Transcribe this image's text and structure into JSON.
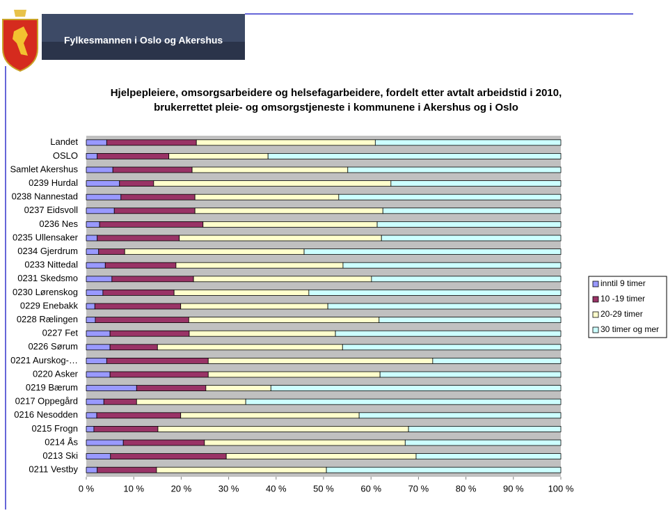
{
  "header": {
    "title": "Fylkesmannen i Oslo og Akershus"
  },
  "chart_data": {
    "type": "stacked-barh",
    "title": [
      "Hjelpepleiere, omsorgsarbeidere og helsefagarbeidere, fordelt etter avtalt arbeidstid i 2010,",
      "brukerrettet pleie- og omsorgstjeneste i kommunene i Akershus og i Oslo"
    ],
    "categories": [
      "Landet",
      "OSLO",
      "Samlet Akershus",
      "0239 Hurdal",
      "0238 Nannestad",
      "0237 Eidsvoll",
      "0236 Nes",
      "0235 Ullensaker",
      "0234 Gjerdrum",
      "0233 Nittedal",
      "0231 Skedsmo",
      "0230 Lørenskog",
      "0229 Enebakk",
      "0228 Rælingen",
      "0227 Fet",
      "0226 Sørum",
      "0221 Aurskog-…",
      "0220 Asker",
      "0219 Bærum",
      "0217 Oppegård",
      "0216 Nesodden",
      "0215 Frogn",
      "0214 Ås",
      "0213 Ski",
      "0211 Vestby"
    ],
    "series": [
      {
        "name": "inntil 9 timer",
        "color": "#9999ff",
        "values": [
          4.3,
          2.3,
          5.6,
          7.0,
          7.3,
          5.9,
          2.8,
          2.3,
          2.6,
          4.0,
          5.4,
          3.5,
          1.8,
          1.9,
          5.0,
          5.0,
          4.3,
          5.0,
          10.6,
          3.7,
          2.2,
          1.6,
          7.8,
          5.1,
          2.3
        ]
      },
      {
        "name": "10 -19 timer",
        "color": "#993366",
        "values": [
          18.9,
          15.1,
          16.7,
          7.2,
          15.6,
          17.0,
          21.8,
          17.3,
          5.5,
          14.9,
          17.2,
          15.0,
          18.1,
          19.7,
          16.7,
          10.0,
          21.4,
          20.7,
          14.6,
          6.9,
          17.7,
          13.5,
          17.1,
          24.4,
          12.5
        ]
      },
      {
        "name": "20-29 timer",
        "color": "#ffffcc",
        "values": [
          37.7,
          20.9,
          32.8,
          50.0,
          30.3,
          39.6,
          36.7,
          42.6,
          37.8,
          35.2,
          37.5,
          28.4,
          31.0,
          40.1,
          30.8,
          39.0,
          47.3,
          36.2,
          13.7,
          23.0,
          37.6,
          52.8,
          42.3,
          40.0,
          35.8
        ]
      },
      {
        "name": "30 timer og mer",
        "color": "#ccffff",
        "values": [
          39.1,
          61.7,
          44.9,
          35.8,
          46.8,
          37.5,
          38.7,
          37.8,
          54.1,
          45.9,
          39.9,
          53.1,
          49.1,
          38.3,
          47.5,
          46.0,
          27.0,
          38.1,
          61.1,
          66.4,
          42.5,
          32.1,
          32.8,
          30.5,
          49.4
        ]
      }
    ],
    "xlim": [
      0,
      100
    ],
    "xticks": [
      {
        "value": 0,
        "label": "0 %"
      },
      {
        "value": 10,
        "label": "10 %"
      },
      {
        "value": 20,
        "label": "20 %"
      },
      {
        "value": 30,
        "label": "30 %"
      },
      {
        "value": 40,
        "label": "40 %"
      },
      {
        "value": 50,
        "label": "50 %"
      },
      {
        "value": 60,
        "label": "60 %"
      },
      {
        "value": 70,
        "label": "70 %"
      },
      {
        "value": 80,
        "label": "80 %"
      },
      {
        "value": 90,
        "label": "90 %"
      },
      {
        "value": 100,
        "label": "100 %"
      }
    ],
    "grid": false,
    "legend": "right"
  }
}
